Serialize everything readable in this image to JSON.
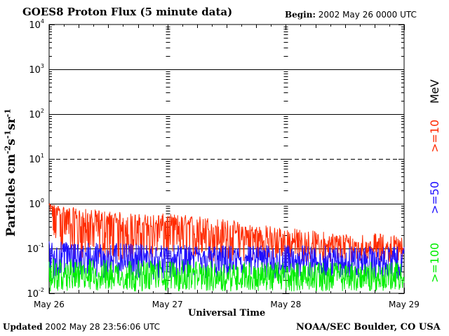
{
  "header": {
    "title": "GOES8 Proton Flux (5 minute data)",
    "begin_label": "Begin:",
    "begin_value": "2002 May 26 0000 UTC"
  },
  "footer": {
    "updated_label": "Updated",
    "updated_value": "2002 May 28 23:56:06 UTC",
    "source": "NOAA/SEC Boulder, CO USA"
  },
  "legend": {
    "unit": "MeV",
    "ge10": ">=10",
    "ge50": ">=50",
    "ge100": ">=100"
  },
  "colors": {
    "ge10": "#ff2a00",
    "ge50": "#1f10ff",
    "ge100": "#00ee00",
    "axis": "#000000"
  },
  "chart_data": {
    "type": "line",
    "title": "GOES8 Proton Flux (5 minute data)",
    "xlabel": "Universal Time",
    "ylabel": "Particles cm⁻²s⁻¹sr⁻¹",
    "y_scale": "log",
    "ylim": [
      0.01,
      10000
    ],
    "y_ticks": [
      0.01,
      0.1,
      1,
      10,
      100,
      1000,
      10000
    ],
    "y_tick_labels": [
      {
        "base": "10",
        "exp": "-2"
      },
      {
        "base": "10",
        "exp": "-1"
      },
      {
        "base": "10",
        "exp": "0"
      },
      {
        "base": "10",
        "exp": "1"
      },
      {
        "base": "10",
        "exp": "2"
      },
      {
        "base": "10",
        "exp": "3"
      },
      {
        "base": "10",
        "exp": "4"
      }
    ],
    "x_range": [
      "2002-05-26 00:00",
      "2002-05-29 00:00"
    ],
    "x_ticks": [
      "May 26",
      "May 27",
      "May 28",
      "May 29"
    ],
    "threshold_lines": [
      1,
      10,
      100,
      1000
    ],
    "series": [
      {
        "name": ">=10",
        "color": "#ff2a00",
        "x": [
          "2002-05-26 00:00",
          "2002-05-26 06:00",
          "2002-05-26 12:00",
          "2002-05-26 18:00",
          "2002-05-27 00:00",
          "2002-05-27 06:00",
          "2002-05-27 12:00",
          "2002-05-27 18:00",
          "2002-05-28 00:00",
          "2002-05-28 06:00",
          "2002-05-28 12:00",
          "2002-05-28 18:00",
          "2002-05-29 00:00"
        ],
        "values": [
          0.9,
          0.4,
          0.35,
          0.3,
          0.32,
          0.28,
          0.22,
          0.18,
          0.14,
          0.12,
          0.11,
          0.1,
          0.1
        ],
        "spike_max": [
          1.0,
          0.8,
          0.7,
          0.6,
          0.6,
          0.55,
          0.45,
          0.35,
          0.3,
          0.25,
          0.22,
          0.22,
          0.2
        ],
        "noise_min": [
          0.1,
          0.05,
          0.05,
          0.05,
          0.05,
          0.05,
          0.05,
          0.05,
          0.05,
          0.05,
          0.05,
          0.05,
          0.05
        ]
      },
      {
        "name": ">=50",
        "color": "#1f10ff",
        "x": [
          "2002-05-26 00:00",
          "2002-05-27 00:00",
          "2002-05-28 00:00",
          "2002-05-29 00:00"
        ],
        "values": [
          0.07,
          0.06,
          0.055,
          0.05
        ],
        "spike_max": [
          0.15,
          0.12,
          0.12,
          0.11
        ],
        "noise_min": [
          0.02,
          0.02,
          0.02,
          0.02
        ]
      },
      {
        "name": ">=100",
        "color": "#00ee00",
        "x": [
          "2002-05-26 00:00",
          "2002-05-27 00:00",
          "2002-05-28 00:00",
          "2002-05-29 00:00"
        ],
        "values": [
          0.025,
          0.025,
          0.023,
          0.022
        ],
        "spike_max": [
          0.06,
          0.055,
          0.05,
          0.05
        ],
        "noise_min": [
          0.011,
          0.011,
          0.011,
          0.011
        ]
      }
    ],
    "grid": true
  }
}
